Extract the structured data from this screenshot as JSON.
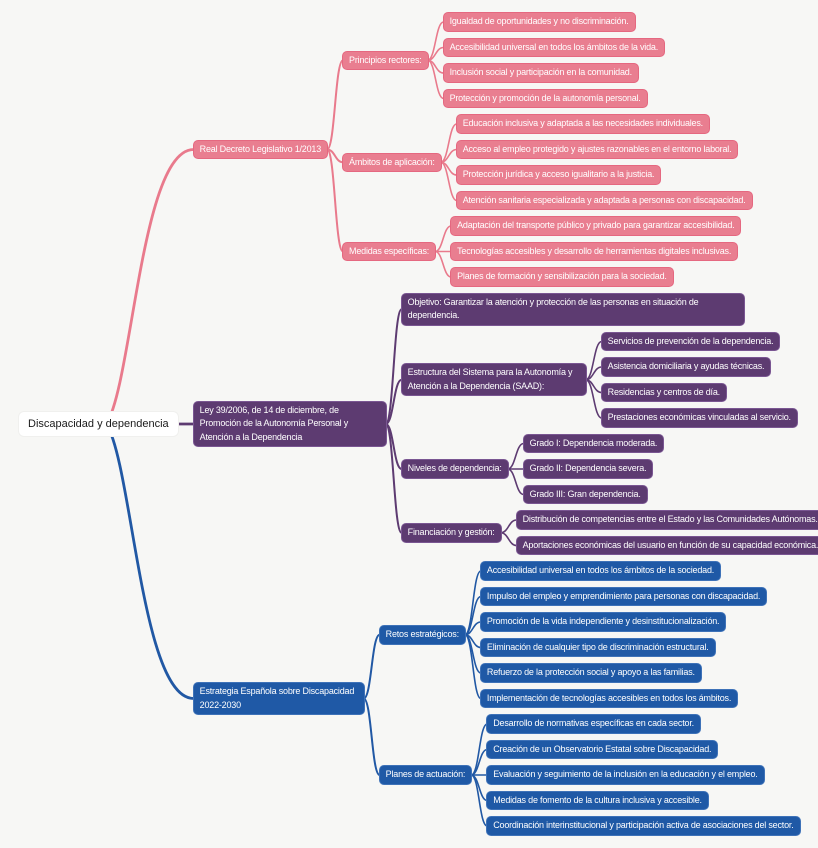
{
  "background": "#F7F7F5",
  "root_style": {
    "fill": "#FFFFFF",
    "text": "#1A1A1A"
  },
  "tree": {
    "text": "Discapacidad y dependencia",
    "children": [
      {
        "text": "Real Decreto Legislativo 1/2013",
        "style": {
          "fill": "#E97E90",
          "border": "#E56880",
          "line": "#E97A8C"
        },
        "children": [
          {
            "text": "Principios rectores:",
            "children": [
              {
                "text": "Igualdad de oportunidades y no discriminación."
              },
              {
                "text": "Accesibilidad universal en todos los ámbitos de la vida."
              },
              {
                "text": "Inclusión social y participación en la comunidad."
              },
              {
                "text": "Protección y promoción de la autonomía personal."
              }
            ]
          },
          {
            "text": "Ámbitos de aplicación:",
            "children": [
              {
                "text": "Educación inclusiva y adaptada a las necesidades individuales."
              },
              {
                "text": "Acceso al empleo protegido y ajustes razonables en el entorno laboral."
              },
              {
                "text": "Protección jurídica y acceso igualitario a la justicia."
              },
              {
                "text": "Atención sanitaria especializada y adaptada a personas con discapacidad."
              }
            ]
          },
          {
            "text": "Medidas específicas:",
            "children": [
              {
                "text": "Adaptación del transporte público y privado para garantizar accesibilidad."
              },
              {
                "text": "Tecnologías accesibles y desarrollo de herramientas digitales inclusivas."
              },
              {
                "text": "Planes de formación y sensibilización para la sociedad."
              }
            ]
          }
        ]
      },
      {
        "text": "Ley 39/2006, de 14 de diciembre, de Promoción de la Autonomía Personal y Atención a la Dependencia",
        "style": {
          "fill": "#5D3B71",
          "border": "#7A5692",
          "line": "#5D3B71"
        },
        "children": [
          {
            "text": "Objetivo: Garantizar la atención y protección de las personas en situación de dependencia."
          },
          {
            "text": "Estructura del Sistema para la Autonomía y Atención a la Dependencia (SAAD):",
            "children": [
              {
                "text": "Servicios de prevención de la dependencia."
              },
              {
                "text": "Asistencia domiciliaria y ayudas técnicas."
              },
              {
                "text": "Residencias y centros de día."
              },
              {
                "text": "Prestaciones económicas vinculadas al servicio."
              }
            ]
          },
          {
            "text": "Niveles de dependencia:",
            "children": [
              {
                "text": "Grado I: Dependencia moderada."
              },
              {
                "text": "Grado II: Dependencia severa."
              },
              {
                "text": "Grado III: Gran dependencia."
              }
            ]
          },
          {
            "text": "Financiación y gestión:",
            "children": [
              {
                "text": "Distribución de competencias entre el Estado y las Comunidades Autónomas."
              },
              {
                "text": "Aportaciones económicas del usuario en función de su capacidad económica."
              }
            ]
          }
        ]
      },
      {
        "text": "Estrategia Española sobre Discapacidad 2022-2030",
        "style": {
          "fill": "#1F59A6",
          "border": "#3E72B8",
          "line": "#2158A4"
        },
        "children": [
          {
            "text": "Retos estratégicos:",
            "children": [
              {
                "text": "Accesibilidad universal en todos los ámbitos de la sociedad."
              },
              {
                "text": "Impulso del empleo y emprendimiento para personas con discapacidad."
              },
              {
                "text": "Promoción de la vida independiente y desinstitucionalización."
              },
              {
                "text": "Eliminación de cualquier tipo de discriminación estructural."
              },
              {
                "text": "Refuerzo de la protección social y apoyo a las familias."
              },
              {
                "text": "Implementación de tecnologías accesibles en todos los ámbitos."
              }
            ]
          },
          {
            "text": "Planes de actuación:",
            "children": [
              {
                "text": "Desarrollo de normativas específicas en cada sector."
              },
              {
                "text": "Creación de un Observatorio Estatal sobre Discapacidad."
              },
              {
                "text": "Evaluación y seguimiento de la inclusión en la educación y el empleo."
              },
              {
                "text": "Medidas de fomento de la cultura inclusiva y accesible."
              },
              {
                "text": "Coordinación interinstitucional y participación activa de asociaciones del sector."
              }
            ]
          }
        ]
      }
    ]
  }
}
